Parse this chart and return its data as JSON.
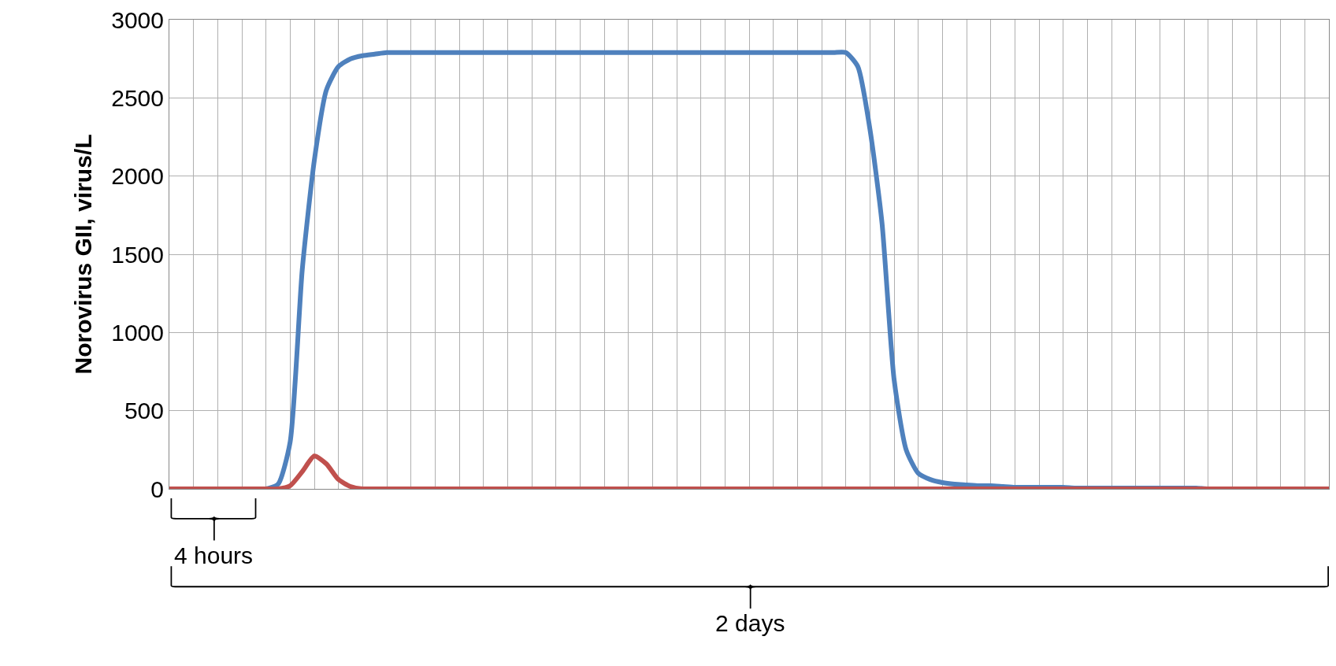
{
  "chart_data": {
    "type": "line",
    "ylabel": "Norovirus GII, virus/L",
    "categories": [
      null,
      null,
      null,
      null,
      null,
      null,
      null,
      null,
      null,
      null,
      null,
      null,
      null,
      null,
      null,
      null,
      null,
      null,
      null,
      null,
      null,
      null,
      null,
      null,
      null,
      null,
      null,
      null,
      null,
      null,
      null,
      null,
      null,
      null,
      null,
      null,
      null,
      null,
      null,
      null,
      null,
      null,
      null,
      null,
      null,
      null,
      null,
      null,
      null,
      null,
      null,
      null,
      null,
      null,
      null,
      null,
      null,
      null,
      null,
      null,
      null,
      null,
      null,
      null,
      null,
      null,
      null,
      null,
      null,
      null,
      null,
      null,
      null,
      null,
      null,
      null,
      null,
      null,
      null,
      null,
      null,
      null,
      null,
      null,
      null,
      null,
      null,
      null,
      null,
      null,
      null,
      null,
      null,
      null,
      null,
      null,
      null
    ],
    "series": [
      {
        "color": "#4f81bd",
        "values": [
          null,
          null,
          null,
          null,
          null,
          null,
          null,
          0,
          0,
          30,
          300,
          1400,
          2100,
          2550,
          2700,
          2750,
          2770,
          2780,
          2790,
          2790,
          2790,
          2790,
          2790,
          2790,
          2790,
          2790,
          2790,
          2790,
          2790,
          2790,
          2790,
          2790,
          2790,
          2790,
          2790,
          2790,
          2790,
          2790,
          2790,
          2790,
          2790,
          2790,
          2790,
          2790,
          2790,
          2790,
          2790,
          2790,
          2790,
          2790,
          2790,
          2790,
          2790,
          2790,
          2790,
          2790,
          2790,
          2700,
          2300,
          1700,
          700,
          250,
          100,
          60,
          40,
          30,
          25,
          20,
          20,
          15,
          10,
          10,
          10,
          10,
          10,
          5,
          5,
          5,
          5,
          5,
          5,
          5,
          5,
          5,
          5,
          5,
          0,
          0,
          null,
          null,
          null,
          null,
          null,
          null,
          null,
          null,
          null
        ]
      },
      {
        "color": "#c0504d",
        "values": [
          0,
          0,
          0,
          0,
          0,
          0,
          0,
          0,
          0,
          0,
          20,
          110,
          210,
          160,
          60,
          15,
          0,
          0,
          0,
          0,
          0,
          0,
          0,
          0,
          0,
          0,
          0,
          0,
          0,
          0,
          0,
          0,
          0,
          0,
          0,
          0,
          0,
          0,
          0,
          0,
          0,
          0,
          0,
          0,
          0,
          0,
          0,
          0,
          0,
          0,
          0,
          0,
          0,
          0,
          0,
          0,
          0,
          0,
          0,
          0,
          0,
          0,
          0,
          0,
          0,
          0,
          0,
          0,
          0,
          0,
          0,
          0,
          0,
          0,
          0,
          0,
          0,
          0,
          0,
          0,
          0,
          0,
          0,
          0,
          0,
          0,
          0,
          0,
          0,
          0,
          0,
          0,
          0,
          0,
          0,
          0,
          0
        ]
      }
    ],
    "ylim": [
      0,
      3000
    ],
    "yticks": [
      0,
      500,
      1000,
      1500,
      2000,
      2500,
      3000
    ],
    "grid": true,
    "legend": false,
    "tick_labels": "y",
    "annotations": [
      "4 hours",
      "2 days"
    ]
  }
}
